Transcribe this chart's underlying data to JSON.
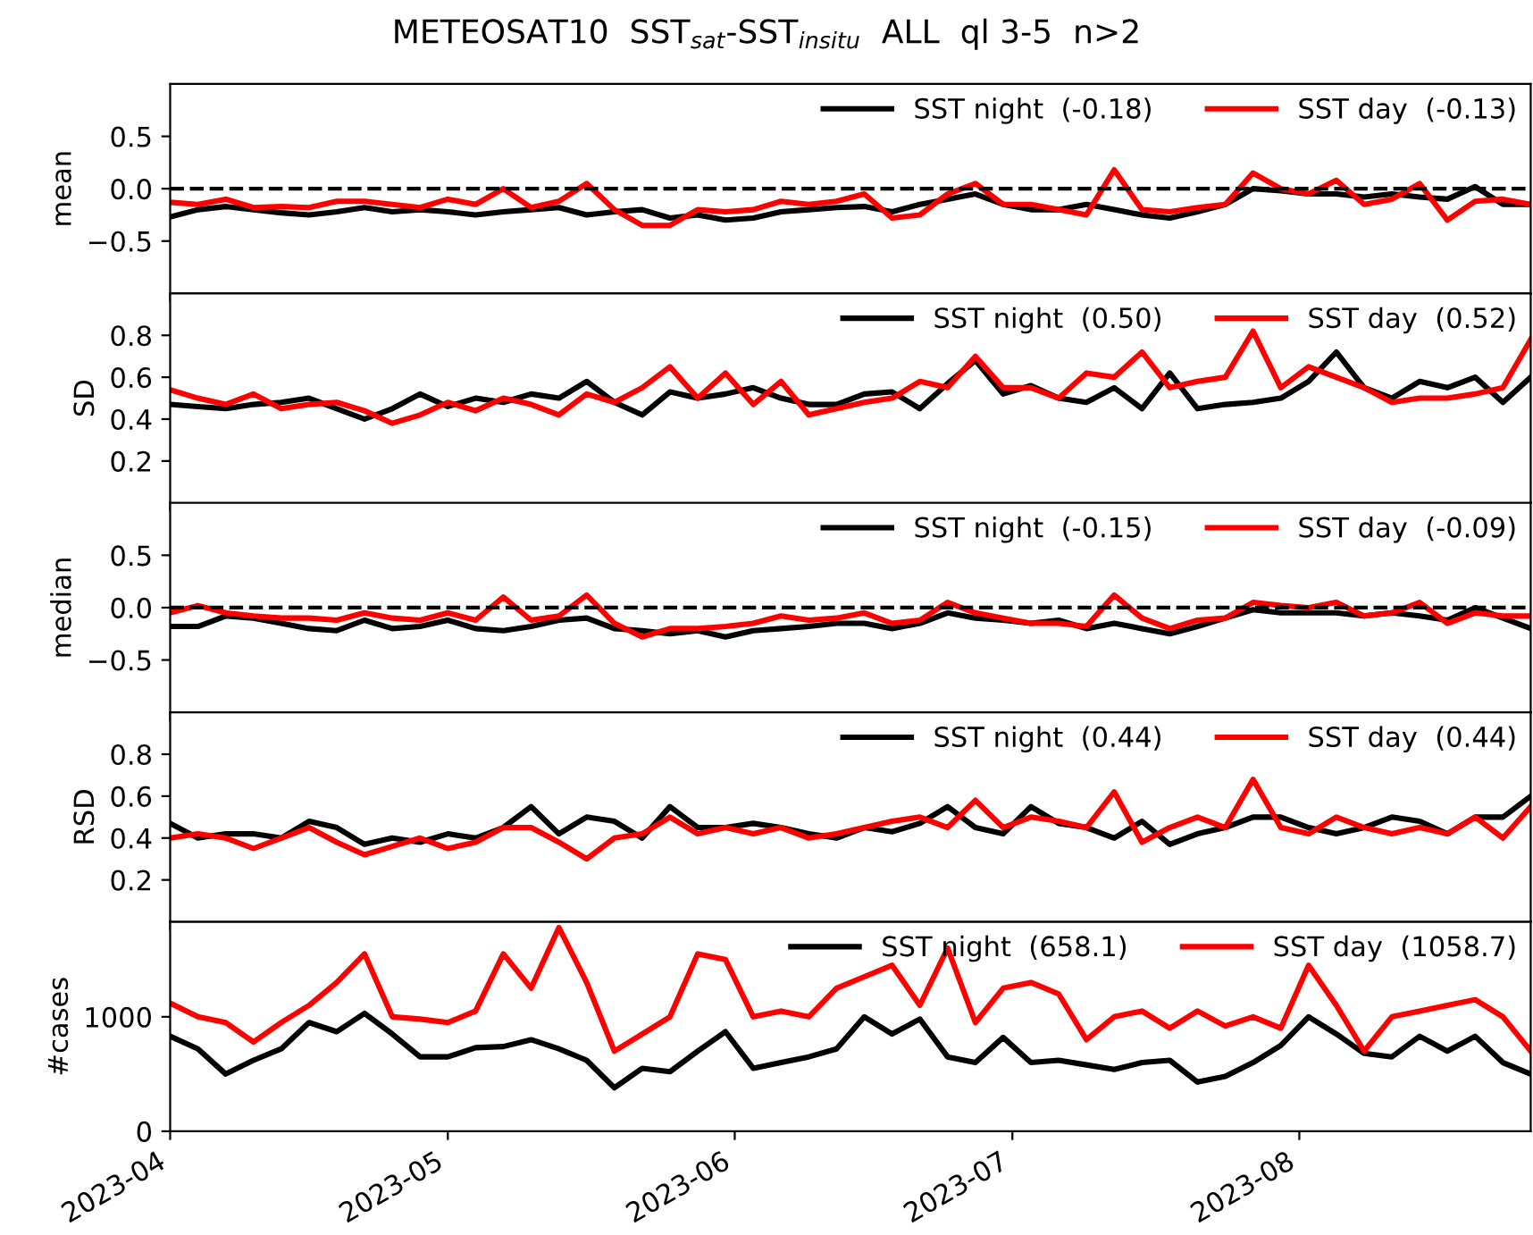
{
  "chart_data": [
    {
      "type": "line",
      "title": "METEOSAT10  SST$_{sat}$-SST$_{insitu}$  ALL  ql 3-5  n>2",
      "ylabel": "mean",
      "legend": "top right",
      "tick_labels": "y",
      "line_style": "solid",
      "x": [
        "2023-04-01",
        "2023-04-04",
        "2023-04-07",
        "2023-04-10",
        "2023-04-13",
        "2023-04-16",
        "2023-04-19",
        "2023-04-22",
        "2023-04-25",
        "2023-04-28",
        "2023-05-01",
        "2023-05-04",
        "2023-05-07",
        "2023-05-10",
        "2023-05-13",
        "2023-05-16",
        "2023-05-19",
        "2023-05-22",
        "2023-05-25",
        "2023-05-28",
        "2023-05-31",
        "2023-06-03",
        "2023-06-06",
        "2023-06-09",
        "2023-06-12",
        "2023-06-15",
        "2023-06-18",
        "2023-06-21",
        "2023-06-24",
        "2023-06-27",
        "2023-06-30",
        "2023-07-03",
        "2023-07-06",
        "2023-07-09",
        "2023-07-12",
        "2023-07-15",
        "2023-07-18",
        "2023-07-21",
        "2023-07-24",
        "2023-07-27",
        "2023-07-30",
        "2023-08-02",
        "2023-08-05",
        "2023-08-08",
        "2023-08-11",
        "2023-08-14",
        "2023-08-17",
        "2023-08-20",
        "2023-08-23",
        "2023-08-26"
      ],
      "xlim": [
        "2023-04-01",
        "2023-08-26"
      ],
      "ylim": [
        -1.0,
        1.0
      ],
      "yticks": [
        -0.5,
        {
          "value": 0.0,
          "label": "0.0"
        },
        0.5
      ],
      "ref_lines": [
        {
          "axis": "y",
          "value": 0,
          "color": "#000000",
          "line_style": "dashed"
        }
      ],
      "series": [
        {
          "name": "SST night  (-0.18)",
          "color": "#000000",
          "values": [
            -0.27,
            -0.2,
            -0.17,
            -0.2,
            -0.23,
            -0.25,
            -0.22,
            -0.18,
            -0.22,
            -0.2,
            -0.22,
            -0.25,
            -0.22,
            -0.2,
            -0.18,
            -0.25,
            -0.22,
            -0.2,
            -0.28,
            -0.25,
            -0.3,
            -0.28,
            -0.22,
            -0.2,
            -0.18,
            -0.17,
            -0.22,
            -0.15,
            -0.1,
            -0.05,
            -0.15,
            -0.2,
            -0.2,
            -0.15,
            -0.2,
            -0.25,
            -0.28,
            -0.22,
            -0.15,
            0.0,
            -0.02,
            -0.05,
            -0.05,
            -0.08,
            -0.05,
            -0.08,
            -0.1,
            0.02,
            -0.15,
            -0.15
          ]
        },
        {
          "name": "SST day  (-0.13)",
          "color": "#ff0000",
          "values": [
            -0.13,
            -0.15,
            -0.1,
            -0.18,
            -0.17,
            -0.18,
            -0.12,
            -0.12,
            -0.15,
            -0.18,
            -0.1,
            -0.15,
            0.0,
            -0.18,
            -0.12,
            0.05,
            -0.2,
            -0.35,
            -0.35,
            -0.2,
            -0.22,
            -0.2,
            -0.12,
            -0.15,
            -0.12,
            -0.05,
            -0.28,
            -0.25,
            -0.05,
            0.05,
            -0.15,
            -0.15,
            -0.2,
            -0.25,
            0.18,
            -0.2,
            -0.22,
            -0.18,
            -0.15,
            0.15,
            0.0,
            -0.05,
            0.08,
            -0.15,
            -0.1,
            0.05,
            -0.3,
            -0.12,
            -0.1,
            -0.15
          ]
        }
      ]
    },
    {
      "type": "line",
      "ylabel": "SD",
      "legend": "top right",
      "tick_labels": "y",
      "line_style": "solid",
      "x": [
        "2023-04-01",
        "2023-04-04",
        "2023-04-07",
        "2023-04-10",
        "2023-04-13",
        "2023-04-16",
        "2023-04-19",
        "2023-04-22",
        "2023-04-25",
        "2023-04-28",
        "2023-05-01",
        "2023-05-04",
        "2023-05-07",
        "2023-05-10",
        "2023-05-13",
        "2023-05-16",
        "2023-05-19",
        "2023-05-22",
        "2023-05-25",
        "2023-05-28",
        "2023-05-31",
        "2023-06-03",
        "2023-06-06",
        "2023-06-09",
        "2023-06-12",
        "2023-06-15",
        "2023-06-18",
        "2023-06-21",
        "2023-06-24",
        "2023-06-27",
        "2023-06-30",
        "2023-07-03",
        "2023-07-06",
        "2023-07-09",
        "2023-07-12",
        "2023-07-15",
        "2023-07-18",
        "2023-07-21",
        "2023-07-24",
        "2023-07-27",
        "2023-07-30",
        "2023-08-02",
        "2023-08-05",
        "2023-08-08",
        "2023-08-11",
        "2023-08-14",
        "2023-08-17",
        "2023-08-20",
        "2023-08-23",
        "2023-08-26"
      ],
      "xlim": [
        "2023-04-01",
        "2023-08-26"
      ],
      "ylim": [
        0.0,
        1.0
      ],
      "yticks": [
        0.2,
        0.4,
        0.6,
        0.8
      ],
      "series": [
        {
          "name": "SST night  (0.50)",
          "color": "#000000",
          "values": [
            0.47,
            0.46,
            0.45,
            0.47,
            0.48,
            0.5,
            0.45,
            0.4,
            0.45,
            0.52,
            0.46,
            0.5,
            0.48,
            0.52,
            0.5,
            0.58,
            0.48,
            0.42,
            0.53,
            0.5,
            0.52,
            0.55,
            0.5,
            0.47,
            0.47,
            0.52,
            0.53,
            0.45,
            0.57,
            0.68,
            0.52,
            0.56,
            0.5,
            0.48,
            0.55,
            0.45,
            0.62,
            0.45,
            0.47,
            0.48,
            0.5,
            0.58,
            0.72,
            0.55,
            0.5,
            0.58,
            0.55,
            0.6,
            0.48,
            0.6
          ]
        },
        {
          "name": "SST day  (0.52)",
          "color": "#ff0000",
          "values": [
            0.54,
            0.5,
            0.47,
            0.52,
            0.45,
            0.47,
            0.48,
            0.44,
            0.38,
            0.42,
            0.48,
            0.44,
            0.5,
            0.47,
            0.42,
            0.52,
            0.48,
            0.55,
            0.65,
            0.5,
            0.62,
            0.47,
            0.58,
            0.42,
            0.45,
            0.48,
            0.5,
            0.58,
            0.55,
            0.7,
            0.55,
            0.55,
            0.5,
            0.62,
            0.6,
            0.72,
            0.55,
            0.58,
            0.6,
            0.82,
            0.55,
            0.65,
            0.6,
            0.55,
            0.48,
            0.5,
            0.5,
            0.52,
            0.55,
            0.78
          ]
        }
      ]
    },
    {
      "type": "line",
      "ylabel": "median",
      "legend": "top right",
      "tick_labels": "y",
      "line_style": "solid",
      "x": [
        "2023-04-01",
        "2023-04-04",
        "2023-04-07",
        "2023-04-10",
        "2023-04-13",
        "2023-04-16",
        "2023-04-19",
        "2023-04-22",
        "2023-04-25",
        "2023-04-28",
        "2023-05-01",
        "2023-05-04",
        "2023-05-07",
        "2023-05-10",
        "2023-05-13",
        "2023-05-16",
        "2023-05-19",
        "2023-05-22",
        "2023-05-25",
        "2023-05-28",
        "2023-05-31",
        "2023-06-03",
        "2023-06-06",
        "2023-06-09",
        "2023-06-12",
        "2023-06-15",
        "2023-06-18",
        "2023-06-21",
        "2023-06-24",
        "2023-06-27",
        "2023-06-30",
        "2023-07-03",
        "2023-07-06",
        "2023-07-09",
        "2023-07-12",
        "2023-07-15",
        "2023-07-18",
        "2023-07-21",
        "2023-07-24",
        "2023-07-27",
        "2023-07-30",
        "2023-08-02",
        "2023-08-05",
        "2023-08-08",
        "2023-08-11",
        "2023-08-14",
        "2023-08-17",
        "2023-08-20",
        "2023-08-23",
        "2023-08-26"
      ],
      "xlim": [
        "2023-04-01",
        "2023-08-26"
      ],
      "ylim": [
        -1.0,
        1.0
      ],
      "yticks": [
        -0.5,
        {
          "value": 0.0,
          "label": "0.0"
        },
        0.5
      ],
      "ref_lines": [
        {
          "axis": "y",
          "value": 0,
          "color": "#000000",
          "line_style": "dashed"
        }
      ],
      "series": [
        {
          "name": "SST night  (-0.15)",
          "color": "#000000",
          "values": [
            -0.18,
            -0.18,
            -0.08,
            -0.1,
            -0.15,
            -0.2,
            -0.22,
            -0.12,
            -0.2,
            -0.18,
            -0.12,
            -0.2,
            -0.22,
            -0.18,
            -0.12,
            -0.1,
            -0.2,
            -0.22,
            -0.25,
            -0.22,
            -0.28,
            -0.22,
            -0.2,
            -0.18,
            -0.15,
            -0.15,
            -0.2,
            -0.15,
            -0.05,
            -0.1,
            -0.12,
            -0.15,
            -0.12,
            -0.2,
            -0.15,
            -0.2,
            -0.25,
            -0.18,
            -0.1,
            -0.02,
            -0.05,
            -0.05,
            -0.05,
            -0.08,
            -0.05,
            -0.08,
            -0.12,
            0.0,
            -0.1,
            -0.2
          ]
        },
        {
          "name": "SST day  (-0.09)",
          "color": "#ff0000",
          "values": [
            -0.05,
            0.02,
            -0.05,
            -0.08,
            -0.1,
            -0.1,
            -0.12,
            -0.05,
            -0.1,
            -0.12,
            -0.05,
            -0.12,
            0.1,
            -0.12,
            -0.08,
            0.12,
            -0.15,
            -0.28,
            -0.2,
            -0.2,
            -0.18,
            -0.15,
            -0.08,
            -0.12,
            -0.1,
            -0.05,
            -0.15,
            -0.12,
            0.05,
            -0.05,
            -0.1,
            -0.15,
            -0.15,
            -0.18,
            0.12,
            -0.1,
            -0.2,
            -0.12,
            -0.1,
            0.05,
            0.02,
            0.0,
            0.05,
            -0.08,
            -0.05,
            0.05,
            -0.15,
            -0.05,
            -0.08,
            -0.08
          ]
        }
      ]
    },
    {
      "type": "line",
      "ylabel": "RSD",
      "legend": "top right",
      "tick_labels": "y",
      "line_style": "solid",
      "x": [
        "2023-04-01",
        "2023-04-04",
        "2023-04-07",
        "2023-04-10",
        "2023-04-13",
        "2023-04-16",
        "2023-04-19",
        "2023-04-22",
        "2023-04-25",
        "2023-04-28",
        "2023-05-01",
        "2023-05-04",
        "2023-05-07",
        "2023-05-10",
        "2023-05-13",
        "2023-05-16",
        "2023-05-19",
        "2023-05-22",
        "2023-05-25",
        "2023-05-28",
        "2023-05-31",
        "2023-06-03",
        "2023-06-06",
        "2023-06-09",
        "2023-06-12",
        "2023-06-15",
        "2023-06-18",
        "2023-06-21",
        "2023-06-24",
        "2023-06-27",
        "2023-06-30",
        "2023-07-03",
        "2023-07-06",
        "2023-07-09",
        "2023-07-12",
        "2023-07-15",
        "2023-07-18",
        "2023-07-21",
        "2023-07-24",
        "2023-07-27",
        "2023-07-30",
        "2023-08-02",
        "2023-08-05",
        "2023-08-08",
        "2023-08-11",
        "2023-08-14",
        "2023-08-17",
        "2023-08-20",
        "2023-08-23",
        "2023-08-26"
      ],
      "xlim": [
        "2023-04-01",
        "2023-08-26"
      ],
      "ylim": [
        0.0,
        1.0
      ],
      "yticks": [
        0.2,
        0.4,
        0.6,
        0.8
      ],
      "series": [
        {
          "name": "SST night  (0.44)",
          "color": "#000000",
          "values": [
            0.47,
            0.4,
            0.42,
            0.42,
            0.4,
            0.48,
            0.45,
            0.37,
            0.4,
            0.38,
            0.42,
            0.4,
            0.45,
            0.55,
            0.42,
            0.5,
            0.48,
            0.4,
            0.55,
            0.45,
            0.45,
            0.47,
            0.45,
            0.42,
            0.4,
            0.45,
            0.43,
            0.47,
            0.55,
            0.45,
            0.42,
            0.55,
            0.47,
            0.45,
            0.4,
            0.48,
            0.37,
            0.42,
            0.45,
            0.5,
            0.5,
            0.45,
            0.42,
            0.45,
            0.5,
            0.48,
            0.42,
            0.5,
            0.5,
            0.6
          ]
        },
        {
          "name": "SST day  (0.44)",
          "color": "#ff0000",
          "values": [
            0.4,
            0.42,
            0.4,
            0.35,
            0.4,
            0.45,
            0.38,
            0.32,
            0.36,
            0.4,
            0.35,
            0.38,
            0.45,
            0.45,
            0.38,
            0.3,
            0.4,
            0.42,
            0.5,
            0.42,
            0.45,
            0.42,
            0.45,
            0.4,
            0.42,
            0.45,
            0.48,
            0.5,
            0.45,
            0.58,
            0.45,
            0.5,
            0.48,
            0.45,
            0.62,
            0.38,
            0.45,
            0.5,
            0.45,
            0.68,
            0.45,
            0.42,
            0.5,
            0.45,
            0.42,
            0.45,
            0.42,
            0.5,
            0.4,
            0.55
          ]
        }
      ]
    },
    {
      "type": "line",
      "ylabel": "#cases",
      "legend": "top right",
      "line_style": "solid",
      "x": [
        "2023-04-01",
        "2023-04-04",
        "2023-04-07",
        "2023-04-10",
        "2023-04-13",
        "2023-04-16",
        "2023-04-19",
        "2023-04-22",
        "2023-04-25",
        "2023-04-28",
        "2023-05-01",
        "2023-05-04",
        "2023-05-07",
        "2023-05-10",
        "2023-05-13",
        "2023-05-16",
        "2023-05-19",
        "2023-05-22",
        "2023-05-25",
        "2023-05-28",
        "2023-05-31",
        "2023-06-03",
        "2023-06-06",
        "2023-06-09",
        "2023-06-12",
        "2023-06-15",
        "2023-06-18",
        "2023-06-21",
        "2023-06-24",
        "2023-06-27",
        "2023-06-30",
        "2023-07-03",
        "2023-07-06",
        "2023-07-09",
        "2023-07-12",
        "2023-07-15",
        "2023-07-18",
        "2023-07-21",
        "2023-07-24",
        "2023-07-27",
        "2023-07-30",
        "2023-08-02",
        "2023-08-05",
        "2023-08-08",
        "2023-08-11",
        "2023-08-14",
        "2023-08-17",
        "2023-08-20",
        "2023-08-23",
        "2023-08-26"
      ],
      "xlim": [
        "2023-04-01",
        "2023-08-26"
      ],
      "ylim": [
        0,
        1830
      ],
      "yticks": [
        0,
        1000
      ],
      "xticks": [
        {
          "value": "2023-04-01",
          "label": "2023-04"
        },
        {
          "value": "2023-05-01",
          "label": "2023-05"
        },
        {
          "value": "2023-06-01",
          "label": "2023-06"
        },
        {
          "value": "2023-07-01",
          "label": "2023-07"
        },
        {
          "value": "2023-08-01",
          "label": "2023-08"
        }
      ],
      "series": [
        {
          "name": "SST night  (658.1)",
          "color": "#000000",
          "values": [
            830,
            720,
            500,
            620,
            720,
            950,
            870,
            1030,
            850,
            650,
            650,
            730,
            740,
            800,
            720,
            620,
            380,
            550,
            520,
            700,
            870,
            550,
            600,
            650,
            720,
            1000,
            850,
            980,
            650,
            600,
            820,
            600,
            620,
            580,
            540,
            600,
            620,
            430,
            480,
            600,
            750,
            1000,
            850,
            680,
            650,
            830,
            700,
            830,
            600,
            500
          ]
        },
        {
          "name": "SST day  (1058.7)",
          "color": "#ff0000",
          "values": [
            1120,
            1000,
            950,
            780,
            950,
            1100,
            1300,
            1550,
            1000,
            980,
            950,
            1050,
            1550,
            1250,
            1780,
            1300,
            700,
            850,
            1000,
            1550,
            1500,
            1000,
            1050,
            1000,
            1250,
            1350,
            1450,
            1100,
            1600,
            950,
            1250,
            1300,
            1200,
            800,
            1000,
            1050,
            900,
            1050,
            920,
            1000,
            900,
            1450,
            1100,
            700,
            1000,
            1050,
            1100,
            1150,
            1000,
            700
          ]
        }
      ]
    }
  ]
}
